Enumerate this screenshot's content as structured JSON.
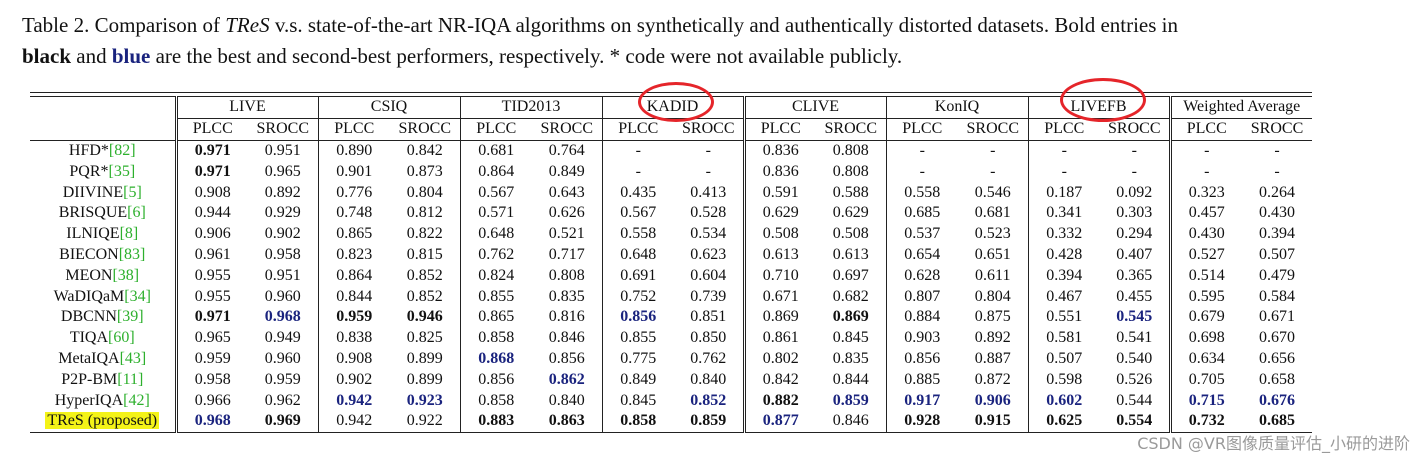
{
  "caption": {
    "prefix": "Table 2. Comparison of ",
    "method": "TReS",
    "mid": " v.s. state-of-the-art NR-IQA algorithms on synthetically and authentically distorted datasets. Bold entries in",
    "black_word": "black",
    "and_word": " and ",
    "blue_word": "blue",
    "suffix": " are the best and second-best performers, respectively. * code were not available publicly."
  },
  "datasets": [
    "LIVE",
    "CSIQ",
    "TID2013",
    "KADID",
    "CLIVE",
    "KonIQ",
    "LIVEFB",
    "Weighted Average"
  ],
  "metrics": [
    "PLCC",
    "SROCC"
  ],
  "rows": [
    {
      "name": "HFD*",
      "ref": "[82]",
      "v": [
        "0.971",
        "0.951",
        "0.890",
        "0.842",
        "0.681",
        "0.764",
        "-",
        "-",
        "0.836",
        "0.808",
        "-",
        "-",
        "-",
        "-",
        "-",
        "-"
      ]
    },
    {
      "name": "PQR*",
      "ref": "[35]",
      "v": [
        "0.971",
        "0.965",
        "0.901",
        "0.873",
        "0.864",
        "0.849",
        "-",
        "-",
        "0.836",
        "0.808",
        "-",
        "-",
        "-",
        "-",
        "-",
        "-"
      ]
    },
    {
      "name": "DIIVINE",
      "ref": "[5]",
      "v": [
        "0.908",
        "0.892",
        "0.776",
        "0.804",
        "0.567",
        "0.643",
        "0.435",
        "0.413",
        "0.591",
        "0.588",
        "0.558",
        "0.546",
        "0.187",
        "0.092",
        "0.323",
        "0.264"
      ]
    },
    {
      "name": "BRISQUE",
      "ref": "[6]",
      "v": [
        "0.944",
        "0.929",
        "0.748",
        "0.812",
        "0.571",
        "0.626",
        "0.567",
        "0.528",
        "0.629",
        "0.629",
        "0.685",
        "0.681",
        "0.341",
        "0.303",
        "0.457",
        "0.430"
      ]
    },
    {
      "name": "ILNIQE",
      "ref": "[8]",
      "v": [
        "0.906",
        "0.902",
        "0.865",
        "0.822",
        "0.648",
        "0.521",
        "0.558",
        "0.534",
        "0.508",
        "0.508",
        "0.537",
        "0.523",
        "0.332",
        "0.294",
        "0.430",
        "0.394"
      ]
    },
    {
      "name": "BIECON",
      "ref": "[83]",
      "v": [
        "0.961",
        "0.958",
        "0.823",
        "0.815",
        "0.762",
        "0.717",
        "0.648",
        "0.623",
        "0.613",
        "0.613",
        "0.654",
        "0.651",
        "0.428",
        "0.407",
        "0.527",
        "0.507"
      ]
    },
    {
      "name": "MEON",
      "ref": "[38]",
      "v": [
        "0.955",
        "0.951",
        "0.864",
        "0.852",
        "0.824",
        "0.808",
        "0.691",
        "0.604",
        "0.710",
        "0.697",
        "0.628",
        "0.611",
        "0.394",
        "0.365",
        "0.514",
        "0.479"
      ]
    },
    {
      "name": "WaDIQaM",
      "ref": "[34]",
      "v": [
        "0.955",
        "0.960",
        "0.844",
        "0.852",
        "0.855",
        "0.835",
        "0.752",
        "0.739",
        "0.671",
        "0.682",
        "0.807",
        "0.804",
        "0.467",
        "0.455",
        "0.595",
        "0.584"
      ]
    },
    {
      "name": "DBCNN",
      "ref": "[39]",
      "v": [
        "0.971",
        "0.968",
        "0.959",
        "0.946",
        "0.865",
        "0.816",
        "0.856",
        "0.851",
        "0.869",
        "0.869",
        "0.884",
        "0.875",
        "0.551",
        "0.545",
        "0.679",
        "0.671"
      ]
    },
    {
      "name": "TIQA",
      "ref": "[60]",
      "v": [
        "0.965",
        "0.949",
        "0.838",
        "0.825",
        "0.858",
        "0.846",
        "0.855",
        "0.850",
        "0.861",
        "0.845",
        "0.903",
        "0.892",
        "0.581",
        "0.541",
        "0.698",
        "0.670"
      ]
    },
    {
      "name": "MetaIQA",
      "ref": "[43]",
      "v": [
        "0.959",
        "0.960",
        "0.908",
        "0.899",
        "0.868",
        "0.856",
        "0.775",
        "0.762",
        "0.802",
        "0.835",
        "0.856",
        "0.887",
        "0.507",
        "0.540",
        "0.634",
        "0.656"
      ]
    },
    {
      "name": "P2P-BM",
      "ref": "[11]",
      "v": [
        "0.958",
        "0.959",
        "0.902",
        "0.899",
        "0.856",
        "0.862",
        "0.849",
        "0.840",
        "0.842",
        "0.844",
        "0.885",
        "0.872",
        "0.598",
        "0.526",
        "0.705",
        "0.658"
      ]
    },
    {
      "name": "HyperIQA",
      "ref": "[42]",
      "v": [
        "0.966",
        "0.962",
        "0.942",
        "0.923",
        "0.858",
        "0.840",
        "0.845",
        "0.852",
        "0.882",
        "0.859",
        "0.917",
        "0.906",
        "0.602",
        "0.544",
        "0.715",
        "0.676"
      ]
    },
    {
      "name": "TReS (proposed)",
      "ref": "",
      "v": [
        "0.968",
        "0.969",
        "0.942",
        "0.922",
        "0.883",
        "0.863",
        "0.858",
        "0.859",
        "0.877",
        "0.846",
        "0.928",
        "0.915",
        "0.625",
        "0.554",
        "0.732",
        "0.685"
      ]
    }
  ],
  "emphasis": {
    "best": [
      [
        0,
        0
      ],
      [
        1,
        0
      ],
      [
        8,
        0
      ],
      [
        8,
        2
      ],
      [
        8,
        3
      ],
      [
        13,
        1
      ],
      [
        13,
        4
      ],
      [
        13,
        5
      ],
      [
        13,
        6
      ],
      [
        13,
        7
      ],
      [
        12,
        8
      ],
      [
        8,
        9
      ],
      [
        13,
        10
      ],
      [
        13,
        11
      ],
      [
        13,
        12
      ],
      [
        13,
        13
      ],
      [
        13,
        14
      ],
      [
        13,
        15
      ]
    ],
    "second": [
      [
        8,
        1
      ],
      [
        13,
        0
      ],
      [
        12,
        2
      ],
      [
        12,
        3
      ],
      [
        10,
        4
      ],
      [
        11,
        5
      ],
      [
        8,
        6
      ],
      [
        12,
        7
      ],
      [
        13,
        8
      ],
      [
        12,
        9
      ],
      [
        12,
        10
      ],
      [
        12,
        11
      ],
      [
        12,
        12
      ],
      [
        8,
        13
      ],
      [
        12,
        14
      ],
      [
        12,
        15
      ]
    ]
  },
  "colors": {
    "second_best": "#1a237e",
    "reference": "#2db02d",
    "highlight": "#f4f318",
    "annotation_circle": "#e5252a"
  },
  "watermark": "CSDN @VR图像质量评估_小研的进阶"
}
